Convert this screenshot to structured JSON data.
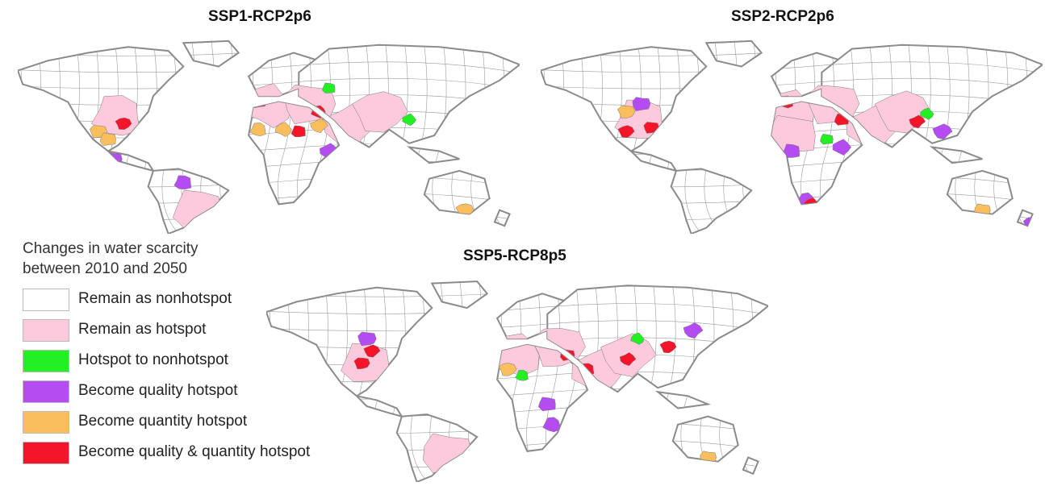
{
  "maps": [
    {
      "title": "SSP1-RCP2p6"
    },
    {
      "title": "SSP2-RCP2p6"
    },
    {
      "title": "SSP5-RCP8p5"
    }
  ],
  "legend": {
    "title_line1": "Changes in water scarcity",
    "title_line2": "between 2010 and 2050",
    "items": [
      {
        "label": "Remain as nonhotspot",
        "color": "#ffffff"
      },
      {
        "label": "Remain as hotspot",
        "color": "#fcc9dd"
      },
      {
        "label": "Hotspot to nonhotspot",
        "color": "#22f022"
      },
      {
        "label": "Become quality hotspot",
        "color": "#b44cf2"
      },
      {
        "label": "Become quantity hotspot",
        "color": "#fbbe5c"
      },
      {
        "label": "Become quality & quantity hotspot",
        "color": "#f5152a"
      }
    ]
  },
  "colors": {
    "coast": "#8a8a8a",
    "basin_border": "#9a9a9a"
  },
  "panel_hotspots": [
    {
      "quality": [
        [
          0.19,
          0.62
        ],
        [
          0.33,
          0.74
        ],
        [
          0.5,
          0.82
        ],
        [
          0.62,
          0.58
        ],
        [
          0.73,
          0.75
        ],
        [
          0.91,
          0.95
        ]
      ],
      "quantity": [
        [
          0.16,
          0.48
        ],
        [
          0.18,
          0.52
        ],
        [
          0.48,
          0.47
        ],
        [
          0.53,
          0.47
        ],
        [
          0.6,
          0.45
        ],
        [
          0.89,
          0.88
        ]
      ],
      "qq": [
        [
          0.21,
          0.44
        ],
        [
          0.48,
          0.33
        ],
        [
          0.56,
          0.48
        ],
        [
          0.6,
          0.38
        ]
      ],
      "to_non": [
        [
          0.62,
          0.26
        ],
        [
          0.26,
          0.55
        ],
        [
          0.78,
          0.42
        ]
      ],
      "remain": [
        [
          0.2,
          0.4
        ],
        [
          0.5,
          0.35
        ],
        [
          0.66,
          0.45
        ],
        [
          0.72,
          0.38
        ],
        [
          0.58,
          0.34
        ],
        [
          0.36,
          0.88
        ]
      ]
    },
    {
      "quality": [
        [
          0.2,
          0.34
        ],
        [
          0.5,
          0.58
        ],
        [
          0.53,
          0.83
        ],
        [
          0.6,
          0.56
        ],
        [
          0.8,
          0.48
        ],
        [
          0.98,
          0.95
        ]
      ],
      "quantity": [
        [
          0.17,
          0.38
        ],
        [
          0.88,
          0.88
        ]
      ],
      "qq": [
        [
          0.17,
          0.48
        ],
        [
          0.22,
          0.46
        ],
        [
          0.6,
          0.42
        ],
        [
          0.49,
          0.33
        ],
        [
          0.54,
          0.85
        ],
        [
          0.75,
          0.43
        ]
      ],
      "to_non": [
        [
          0.57,
          0.52
        ],
        [
          0.28,
          0.95
        ],
        [
          0.77,
          0.39
        ]
      ],
      "remain": [
        [
          0.2,
          0.42
        ],
        [
          0.5,
          0.38
        ],
        [
          0.66,
          0.46
        ],
        [
          0.72,
          0.38
        ],
        [
          0.58,
          0.34
        ],
        [
          0.5,
          0.5
        ]
      ]
    },
    {
      "quality": [
        [
          0.2,
          0.3
        ],
        [
          0.56,
          0.62
        ],
        [
          0.57,
          0.72
        ],
        [
          0.58,
          0.82
        ],
        [
          0.85,
          0.26
        ],
        [
          0.38,
          0.62
        ]
      ],
      "quantity": [
        [
          0.48,
          0.45
        ],
        [
          0.88,
          0.88
        ]
      ],
      "qq": [
        [
          0.21,
          0.36
        ],
        [
          0.19,
          0.42
        ],
        [
          0.6,
          0.38
        ],
        [
          0.64,
          0.45
        ],
        [
          0.57,
          0.88
        ],
        [
          0.72,
          0.4
        ],
        [
          0.8,
          0.34
        ]
      ],
      "to_non": [
        [
          0.26,
          0.55
        ],
        [
          0.51,
          0.48
        ],
        [
          0.74,
          0.3
        ]
      ],
      "remain": [
        [
          0.2,
          0.42
        ],
        [
          0.5,
          0.38
        ],
        [
          0.66,
          0.46
        ],
        [
          0.72,
          0.38
        ],
        [
          0.58,
          0.34
        ],
        [
          0.36,
          0.86
        ]
      ]
    }
  ]
}
